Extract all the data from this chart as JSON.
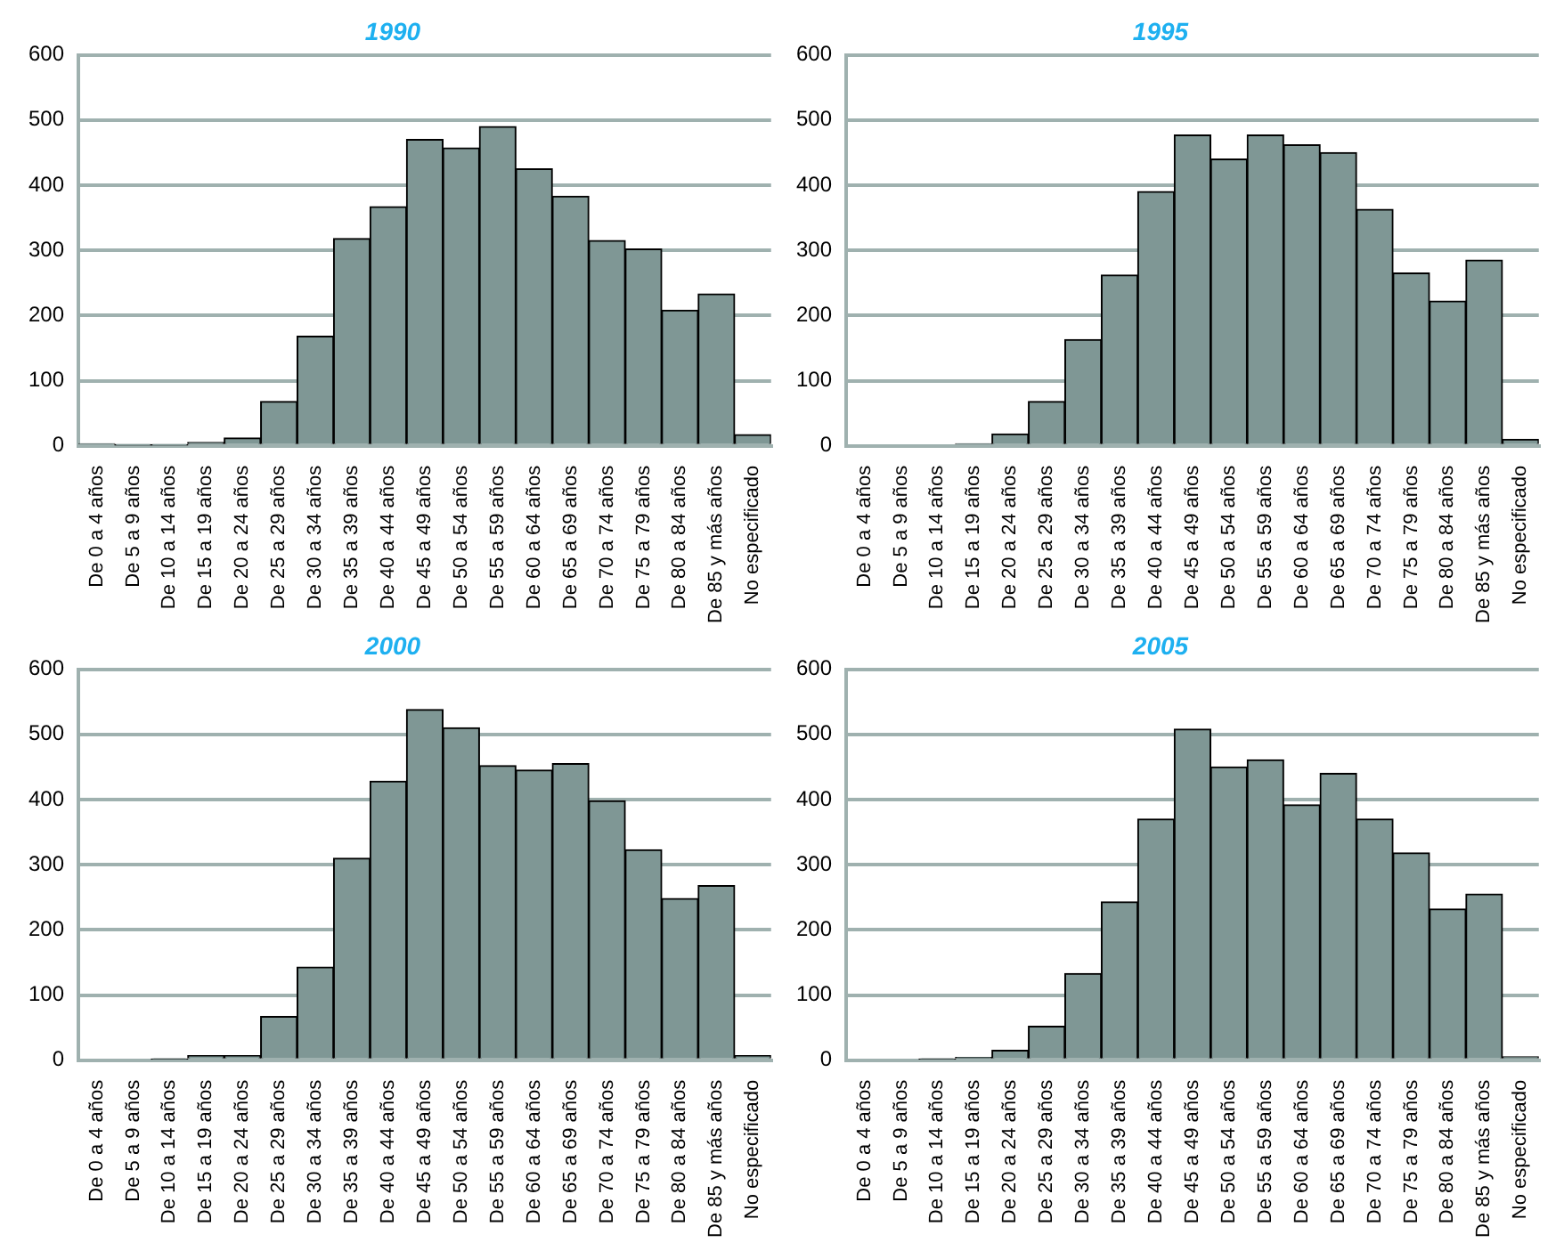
{
  "chart_data": [
    {
      "type": "bar",
      "title": "1990",
      "categories": [
        "De 0 a 4 años",
        "De 5 a 9 años",
        "De 10 a 14 años",
        "De 15 a 19 años",
        "De 20 a 24 años",
        "De 25 a 29 años",
        "De 30 a 34 años",
        "De 35 a 39 años",
        "De 40 a 44 años",
        "De 45 a 49 años",
        "De 50 a 54 años",
        "De 55 a 59 años",
        "De 60 a 64 años",
        "De 65 a 69 años",
        "De 70 a 74 años",
        "De 75 a 79 años",
        "De 80 a 84 años",
        "De 85 y más años",
        "No especificado"
      ],
      "values": [
        3,
        1,
        1,
        5,
        12,
        68,
        168,
        318,
        367,
        470,
        457,
        490,
        425,
        383,
        315,
        302,
        208,
        233,
        17
      ],
      "color": "#7f9795",
      "ylim": [
        0,
        600
      ],
      "yticks": [
        0,
        100,
        200,
        300,
        400,
        500,
        600
      ],
      "grid": "y"
    },
    {
      "type": "bar",
      "title": "1995",
      "categories": [
        "De 0 a 4 años",
        "De 5 a 9 años",
        "De 10 a 14 años",
        "De 15 a 19 años",
        "De 20 a 24 años",
        "De 25 a 29 años",
        "De 30 a 34 años",
        "De 35 a 39 años",
        "De 40 a 44 años",
        "De 45 a 49 años",
        "De 50 a 54 años",
        "De 55 a 59 años",
        "De 60 a 64 años",
        "De 65 a 69 años",
        "De 70 a 74 años",
        "De 75 a 79 años",
        "De 80 a 84 años",
        "De 85 y más años",
        "No especificado"
      ],
      "values": [
        0,
        0,
        0,
        3,
        18,
        68,
        163,
        262,
        390,
        477,
        440,
        477,
        462,
        450,
        363,
        265,
        222,
        285,
        10
      ],
      "color": "#7f9795",
      "ylim": [
        0,
        600
      ],
      "yticks": [
        0,
        100,
        200,
        300,
        400,
        500,
        600
      ],
      "grid": "y"
    },
    {
      "type": "bar",
      "title": "2000",
      "categories": [
        "De 0 a 4 años",
        "De 5 a 9 años",
        "De 10 a 14 años",
        "De 15 a 19 años",
        "De 20 a 24 años",
        "De 25 a 29 años",
        "De 30 a 34 años",
        "De 35 a 39 años",
        "De 40 a 44 años",
        "De 45 a 49 años",
        "De 50 a 54 años",
        "De 55 a 59 años",
        "De 60 a 64 años",
        "De 65 a 69 años",
        "De 70 a 74 años",
        "De 75 a 79 años",
        "De 80 a 84 años",
        "De 85 y más años",
        "No especificado"
      ],
      "values": [
        0,
        0,
        2,
        7,
        7,
        67,
        143,
        310,
        428,
        538,
        510,
        452,
        445,
        455,
        398,
        323,
        248,
        268,
        7
      ],
      "color": "#7f9795",
      "ylim": [
        0,
        600
      ],
      "yticks": [
        0,
        100,
        200,
        300,
        400,
        500,
        600
      ],
      "grid": "y"
    },
    {
      "type": "bar",
      "title": "2005",
      "categories": [
        "De 0 a 4 años",
        "De 5 a 9 años",
        "De 10 a 14 años",
        "De 15 a 19 años",
        "De 20 a 24 años",
        "De 25 a 29 años",
        "De 30 a 34 años",
        "De 35 a 39 años",
        "De 40 a 44 años",
        "De 45 a 49 años",
        "De 50 a 54 años",
        "De 55 a 59 años",
        "De 60 a 64 años",
        "De 65 a 69 años",
        "De 70 a 74 años",
        "De 75 a 79 años",
        "De 80 a 84 años",
        "De 85 y más años",
        "No especificado"
      ],
      "values": [
        0,
        0,
        2,
        4,
        15,
        52,
        133,
        243,
        370,
        508,
        450,
        461,
        392,
        440,
        370,
        318,
        232,
        255,
        5
      ],
      "color": "#7f9795",
      "ylim": [
        0,
        600
      ],
      "yticks": [
        0,
        100,
        200,
        300,
        400,
        500,
        600
      ],
      "grid": "y"
    }
  ]
}
